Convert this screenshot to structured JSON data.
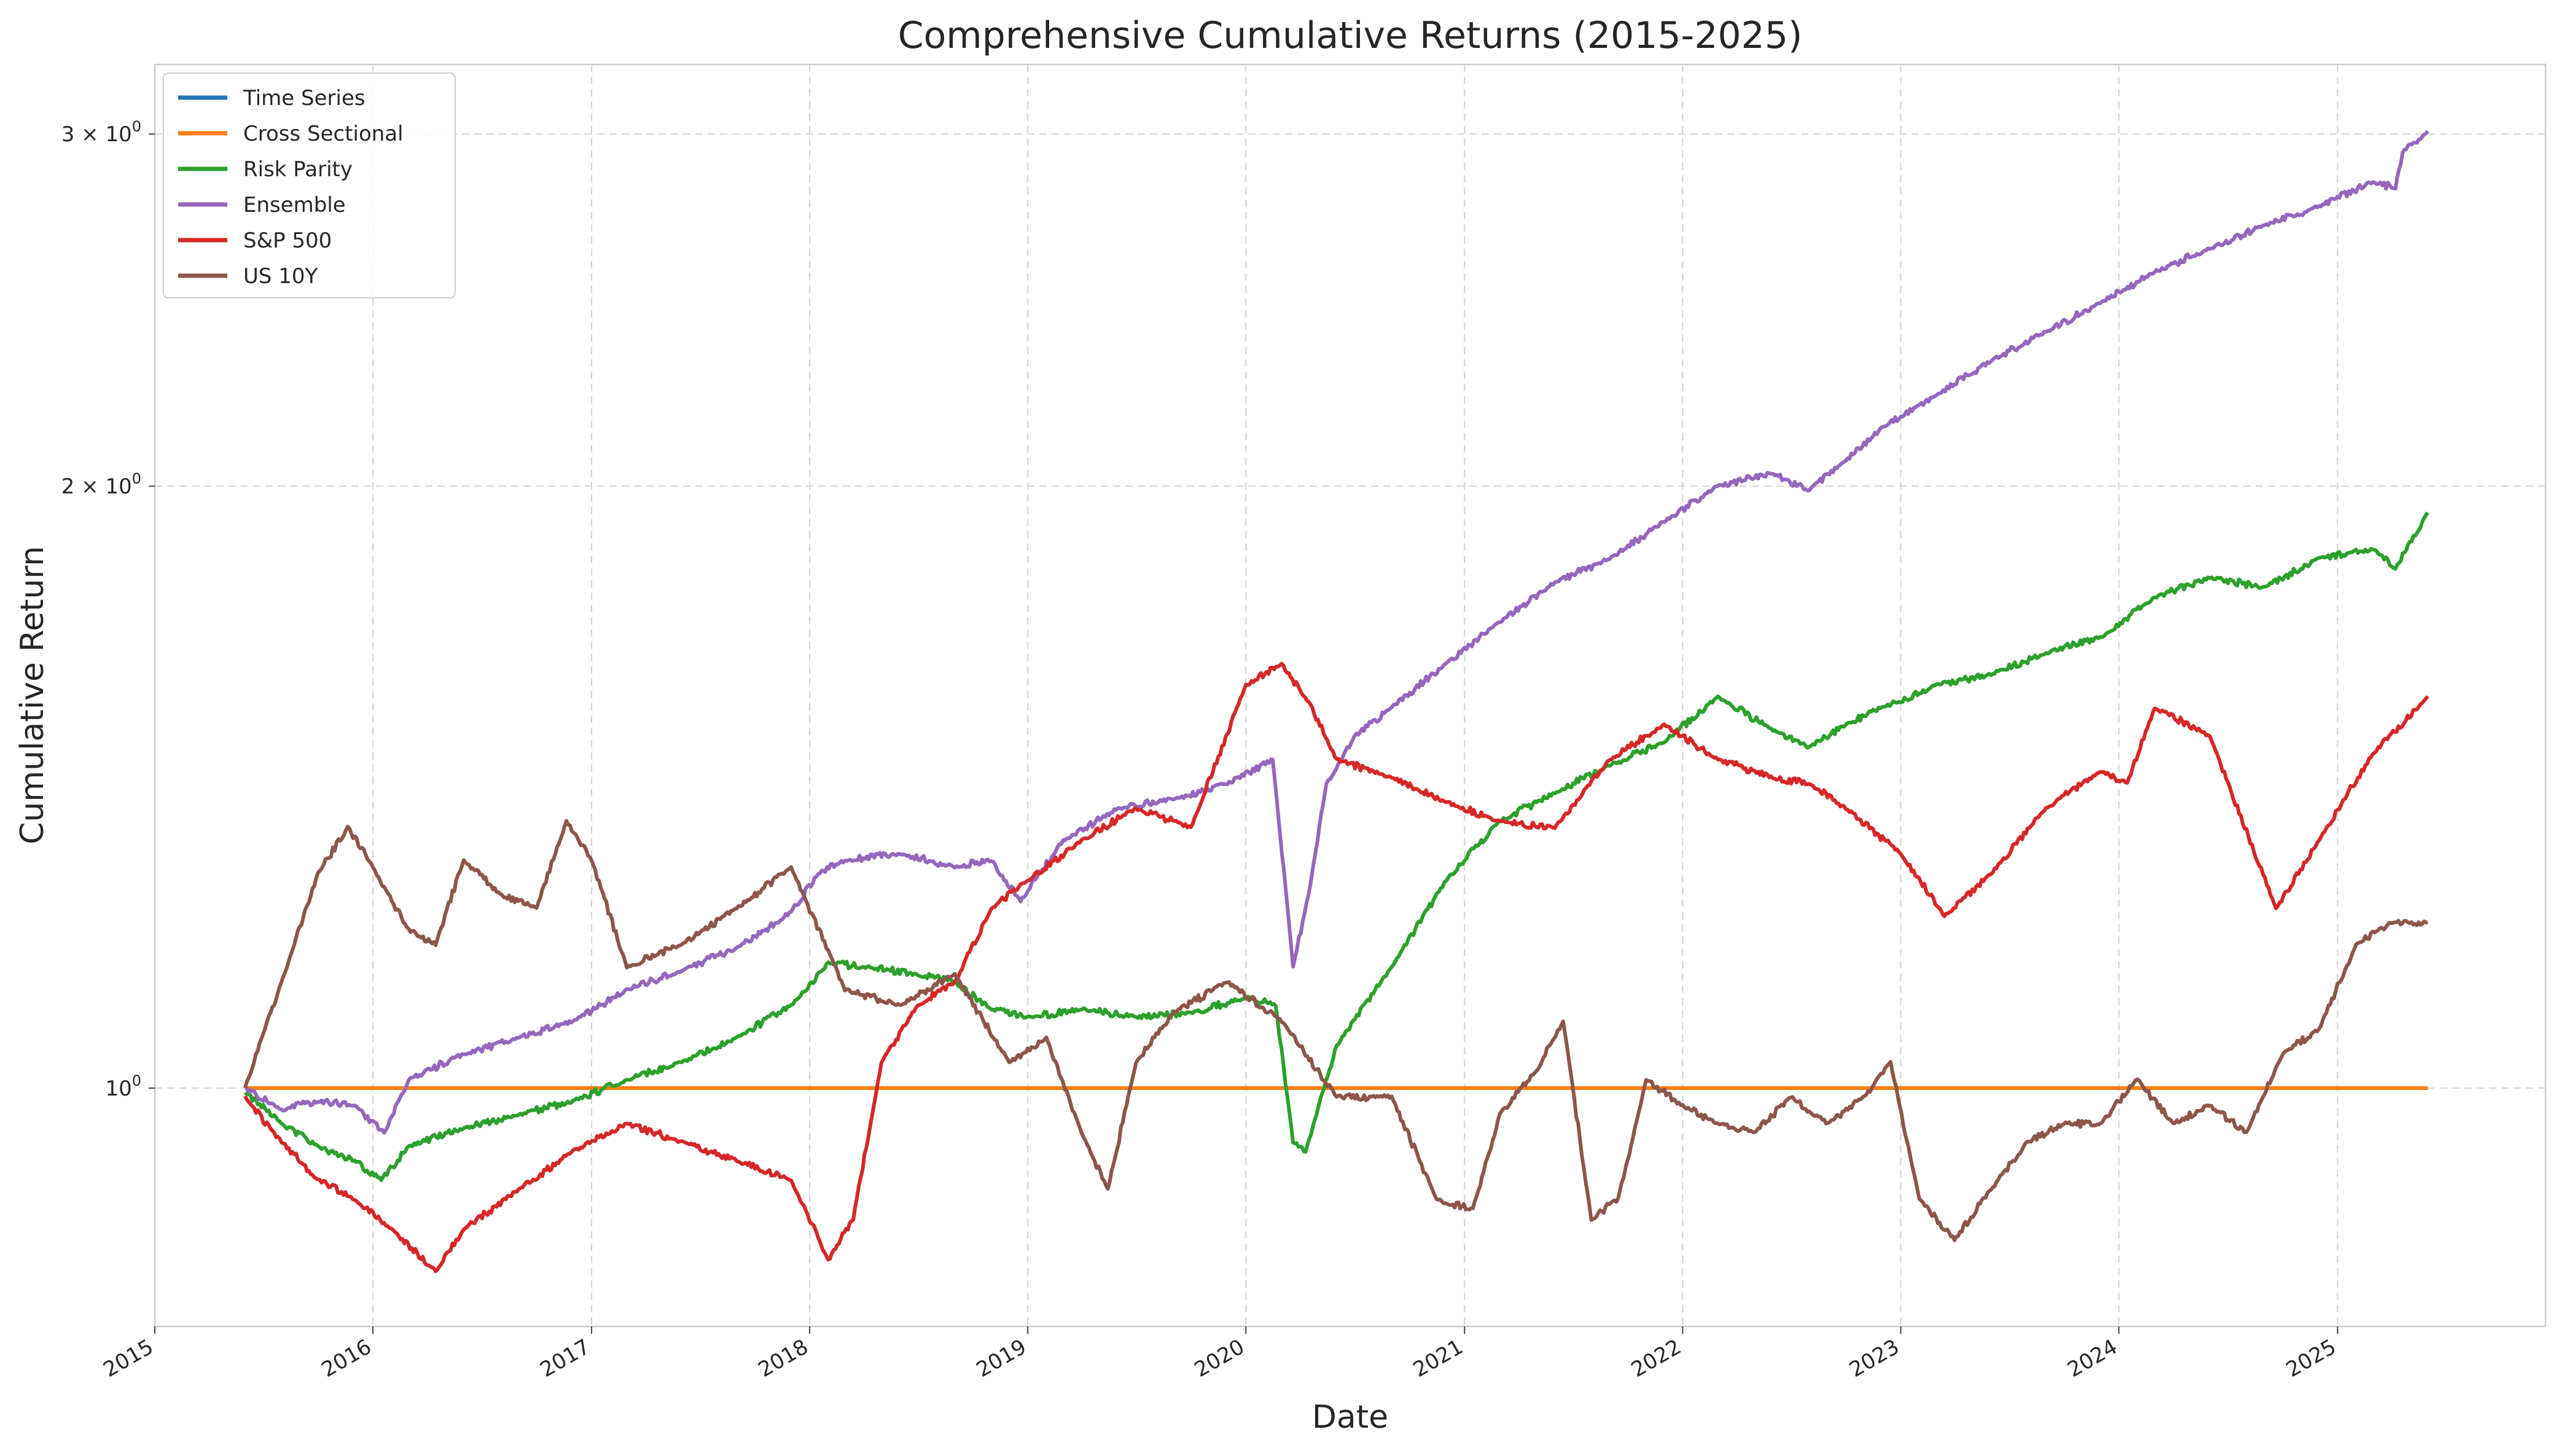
{
  "chart_data": {
    "type": "line",
    "title": "Comprehensive Cumulative Returns (2015-2025)",
    "xlabel": "Date",
    "ylabel": "Cumulative Return",
    "yscale": "log",
    "xlim": [
      "2015-01-01",
      "2025-12-15"
    ],
    "ylim": [
      0.76,
      3.25
    ],
    "x_ticks": [
      "2015",
      "2016",
      "2017",
      "2018",
      "2019",
      "2020",
      "2021",
      "2022",
      "2023",
      "2024",
      "2025"
    ],
    "y_ticks": [
      {
        "value": 1,
        "base": "10",
        "exp": "0",
        "mult": ""
      },
      {
        "value": 2,
        "base": "10",
        "exp": "0",
        "mult": "2 × "
      },
      {
        "value": 3,
        "base": "10",
        "exp": "0",
        "mult": "3 × "
      }
    ],
    "grid": true,
    "legend_position": "top-left",
    "series": [
      {
        "name": "Time Series",
        "color": "#1f77b4",
        "x": [
          "2015-06-01",
          "2025-06-01"
        ],
        "y": [
          1.0,
          1.0
        ]
      },
      {
        "name": "Cross Sectional",
        "color": "#ff7f0e",
        "x": [
          "2015-06-01",
          "2025-06-01"
        ],
        "y": [
          1.0,
          1.0
        ]
      },
      {
        "name": "Risk Parity",
        "color": "#2ca02c",
        "x": [
          "2015-06-01",
          "2015-08-01",
          "2015-10-01",
          "2015-12-01",
          "2016-01-15",
          "2016-03-01",
          "2016-06-01",
          "2016-09-01",
          "2016-12-01",
          "2017-03-01",
          "2017-06-01",
          "2017-09-01",
          "2017-12-01",
          "2018-02-01",
          "2018-04-01",
          "2018-07-01",
          "2018-09-01",
          "2018-11-01",
          "2019-01-01",
          "2019-04-01",
          "2019-07-01",
          "2019-10-01",
          "2020-01-01",
          "2020-02-20",
          "2020-03-20",
          "2020-04-10",
          "2020-06-01",
          "2020-09-01",
          "2020-12-01",
          "2021-03-01",
          "2021-06-01",
          "2021-09-01",
          "2021-12-01",
          "2022-03-01",
          "2022-06-01",
          "2022-08-01",
          "2022-10-01",
          "2022-12-01",
          "2023-03-01",
          "2023-06-01",
          "2023-09-01",
          "2023-12-01",
          "2024-03-01",
          "2024-06-01",
          "2024-09-01",
          "2024-12-01",
          "2025-03-01",
          "2025-04-08",
          "2025-06-01"
        ],
        "y": [
          0.995,
          0.96,
          0.935,
          0.92,
          0.9,
          0.935,
          0.955,
          0.97,
          0.985,
          1.01,
          1.03,
          1.06,
          1.1,
          1.155,
          1.15,
          1.14,
          1.13,
          1.095,
          1.085,
          1.095,
          1.085,
          1.09,
          1.11,
          1.1,
          0.94,
          0.93,
          1.05,
          1.15,
          1.27,
          1.36,
          1.405,
          1.45,
          1.49,
          1.57,
          1.51,
          1.48,
          1.52,
          1.55,
          1.59,
          1.61,
          1.65,
          1.68,
          1.76,
          1.8,
          1.78,
          1.84,
          1.86,
          1.82,
          1.94
        ]
      },
      {
        "name": "Ensemble",
        "color": "#9467bd",
        "x": [
          "2015-06-01",
          "2015-08-01",
          "2015-10-01",
          "2015-12-01",
          "2016-01-20",
          "2016-03-01",
          "2016-06-01",
          "2016-09-01",
          "2016-12-01",
          "2017-03-01",
          "2017-06-01",
          "2017-09-01",
          "2017-12-01",
          "2018-01-15",
          "2018-03-01",
          "2018-06-01",
          "2018-09-01",
          "2018-11-01",
          "2018-12-20",
          "2019-03-01",
          "2019-06-01",
          "2019-09-01",
          "2019-12-01",
          "2020-02-15",
          "2020-03-20",
          "2020-04-15",
          "2020-05-15",
          "2020-07-01",
          "2020-09-01",
          "2020-12-01",
          "2021-03-01",
          "2021-06-01",
          "2021-09-01",
          "2021-12-01",
          "2022-03-01",
          "2022-06-01",
          "2022-08-01",
          "2022-10-01",
          "2022-12-01",
          "2023-03-01",
          "2023-06-01",
          "2023-09-01",
          "2023-12-01",
          "2024-03-01",
          "2024-06-01",
          "2024-09-01",
          "2024-12-01",
          "2025-03-01",
          "2025-04-08",
          "2025-04-20",
          "2025-06-01"
        ],
        "y": [
          1.0,
          0.975,
          0.985,
          0.98,
          0.95,
          1.01,
          1.04,
          1.06,
          1.08,
          1.12,
          1.145,
          1.175,
          1.225,
          1.28,
          1.3,
          1.31,
          1.29,
          1.3,
          1.24,
          1.33,
          1.38,
          1.395,
          1.42,
          1.46,
          1.15,
          1.25,
          1.42,
          1.5,
          1.55,
          1.63,
          1.71,
          1.79,
          1.84,
          1.92,
          2.0,
          2.03,
          1.99,
          2.06,
          2.14,
          2.22,
          2.31,
          2.39,
          2.47,
          2.56,
          2.63,
          2.7,
          2.76,
          2.84,
          2.82,
          2.94,
          3.01
        ]
      },
      {
        "name": "S&P 500",
        "color": "#d62728",
        "x": [
          "2015-06-01",
          "2015-08-01",
          "2015-10-01",
          "2015-12-01",
          "2016-02-01",
          "2016-04-15",
          "2016-06-01",
          "2016-09-01",
          "2016-12-01",
          "2017-03-01",
          "2017-06-01",
          "2017-09-01",
          "2017-12-01",
          "2018-02-01",
          "2018-03-15",
          "2018-05-01",
          "2018-07-01",
          "2018-09-01",
          "2018-11-01",
          "2019-01-01",
          "2019-04-01",
          "2019-07-01",
          "2019-10-01",
          "2020-01-01",
          "2020-03-01",
          "2020-04-15",
          "2020-06-01",
          "2020-09-01",
          "2020-12-01",
          "2021-03-01",
          "2021-06-01",
          "2021-09-01",
          "2021-12-01",
          "2022-03-01",
          "2022-06-01",
          "2022-08-01",
          "2022-10-01",
          "2023-01-01",
          "2023-03-15",
          "2023-06-01",
          "2023-09-01",
          "2023-12-01",
          "2024-01-15",
          "2024-03-01",
          "2024-06-01",
          "2024-09-20",
          "2024-12-01",
          "2025-03-01",
          "2025-06-01"
        ],
        "y": [
          0.99,
          0.94,
          0.9,
          0.88,
          0.85,
          0.81,
          0.85,
          0.89,
          0.93,
          0.96,
          0.94,
          0.92,
          0.9,
          0.82,
          0.86,
          1.03,
          1.1,
          1.13,
          1.23,
          1.27,
          1.33,
          1.38,
          1.35,
          1.59,
          1.63,
          1.56,
          1.46,
          1.43,
          1.39,
          1.36,
          1.35,
          1.46,
          1.52,
          1.46,
          1.43,
          1.42,
          1.38,
          1.31,
          1.22,
          1.28,
          1.38,
          1.44,
          1.42,
          1.55,
          1.5,
          1.23,
          1.33,
          1.47,
          1.57
        ]
      },
      {
        "name": "US 10Y",
        "color": "#8c564b",
        "x": [
          "2015-06-01",
          "2015-08-01",
          "2015-10-01",
          "2015-11-20",
          "2016-01-01",
          "2016-03-01",
          "2016-04-15",
          "2016-06-01",
          "2016-08-01",
          "2016-10-01",
          "2016-11-20",
          "2017-01-01",
          "2017-03-01",
          "2017-06-01",
          "2017-09-01",
          "2017-12-01",
          "2018-03-01",
          "2018-06-01",
          "2018-09-01",
          "2018-12-01",
          "2019-02-01",
          "2019-04-01",
          "2019-05-15",
          "2019-07-01",
          "2019-09-01",
          "2019-12-01",
          "2020-03-01",
          "2020-06-01",
          "2020-09-01",
          "2020-11-15",
          "2021-01-15",
          "2021-03-01",
          "2021-05-01",
          "2021-06-15",
          "2021-08-01",
          "2021-09-15",
          "2021-11-01",
          "2022-01-01",
          "2022-03-01",
          "2022-05-01",
          "2022-07-01",
          "2022-09-01",
          "2022-11-01",
          "2022-12-15",
          "2023-02-01",
          "2023-04-01",
          "2023-06-01",
          "2023-08-01",
          "2023-10-01",
          "2023-12-01",
          "2024-02-01",
          "2024-04-01",
          "2024-06-01",
          "2024-08-01",
          "2024-10-01",
          "2024-12-01",
          "2025-02-01",
          "2025-04-01",
          "2025-06-01"
        ],
        "y": [
          1.0,
          1.13,
          1.28,
          1.35,
          1.29,
          1.2,
          1.18,
          1.3,
          1.25,
          1.23,
          1.36,
          1.3,
          1.15,
          1.18,
          1.23,
          1.29,
          1.12,
          1.1,
          1.14,
          1.03,
          1.06,
          0.95,
          0.89,
          1.03,
          1.09,
          1.13,
          1.08,
          0.99,
          0.99,
          0.88,
          0.87,
          0.97,
          1.02,
          1.08,
          0.86,
          0.88,
          1.01,
          0.98,
          0.96,
          0.95,
          0.99,
          0.96,
          0.99,
          1.03,
          0.88,
          0.84,
          0.89,
          0.94,
          0.96,
          0.96,
          1.01,
          0.96,
          0.98,
          0.95,
          1.04,
          1.07,
          1.18,
          1.21,
          1.21
        ]
      }
    ]
  }
}
